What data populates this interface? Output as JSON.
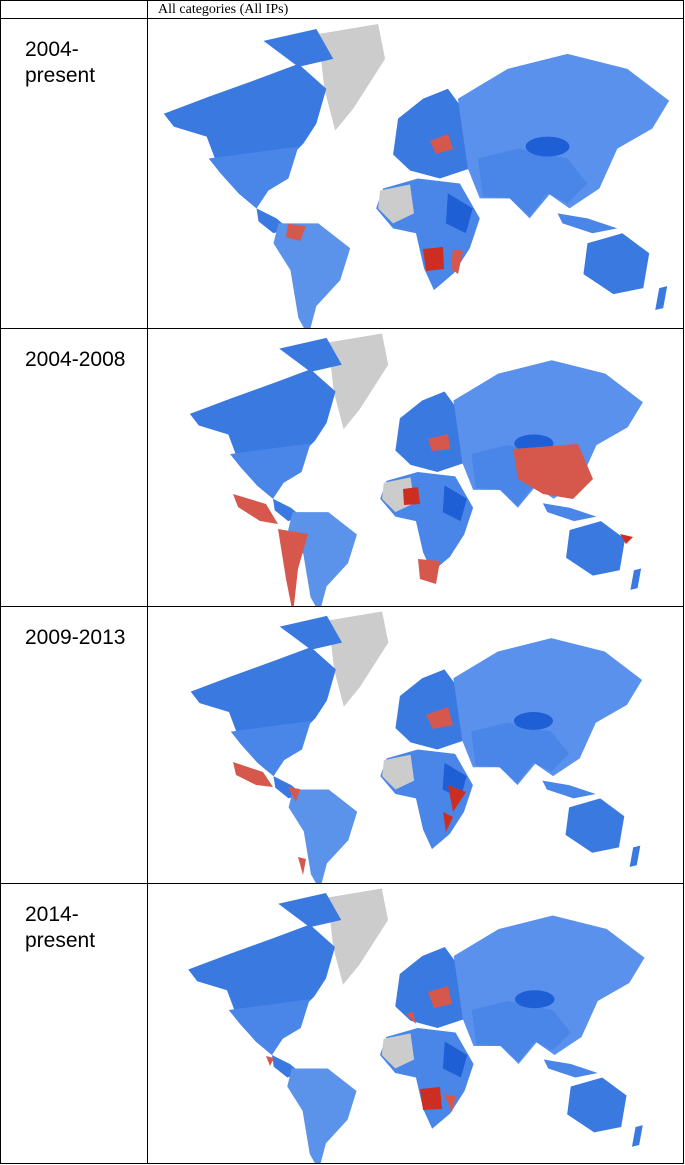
{
  "table": {
    "column_header": "All categories (All IPs)",
    "rows": [
      {
        "period": "2004-present"
      },
      {
        "period": "2004-2008"
      },
      {
        "period": "2009-2013"
      },
      {
        "period": "2014-present"
      }
    ]
  }
}
